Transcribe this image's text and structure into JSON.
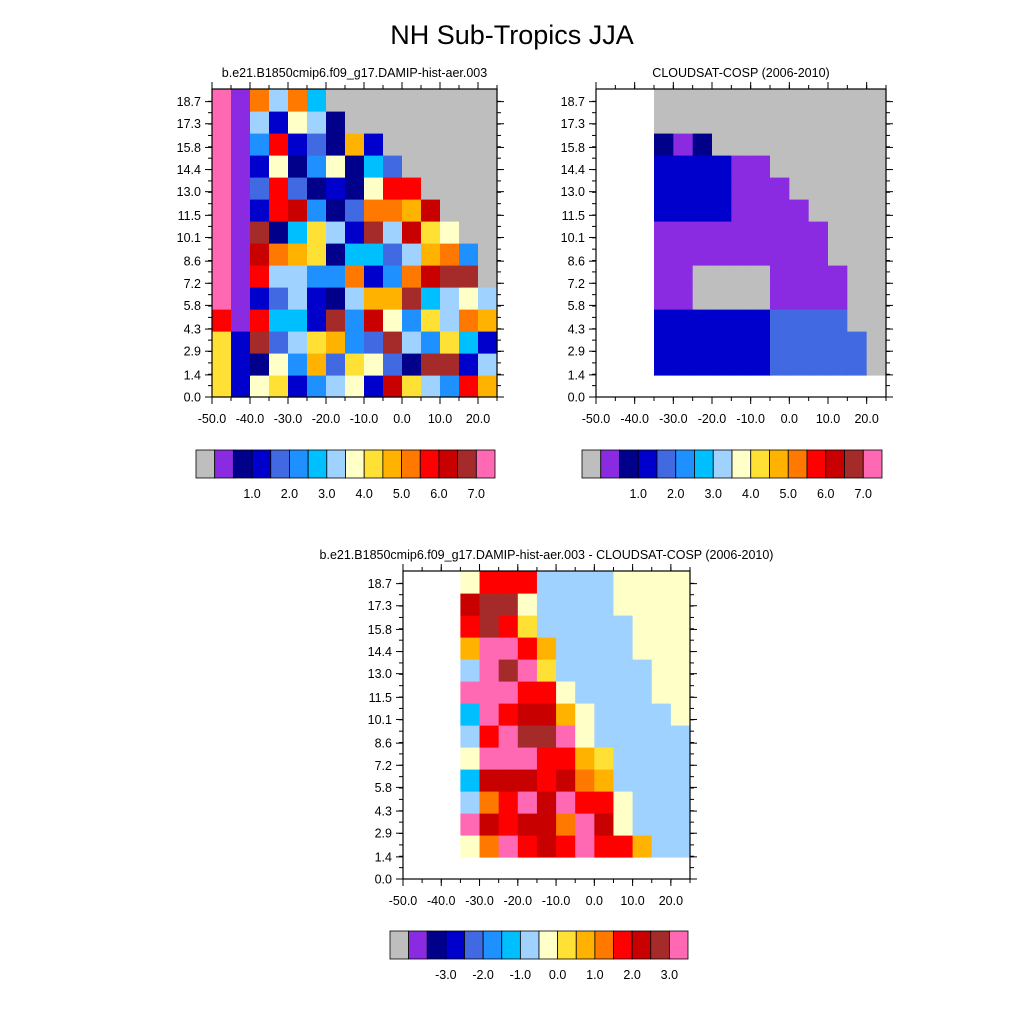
{
  "figure": {
    "title": "NH Sub-Tropics JJA"
  },
  "chart_data": [
    {
      "type": "heatmap",
      "title": "b.e21.B1850cmip6.f09_g17.DAMIP-hist-aer.003",
      "x_ticks": [
        "-50.0",
        "-40.0",
        "-30.0",
        "-20.0",
        "-10.0",
        "0.0",
        "10.0",
        "20.0"
      ],
      "y_ticks": [
        "0.0",
        "1.4",
        "2.9",
        "4.3",
        "5.8",
        "7.2",
        "8.6",
        "10.1",
        "11.5",
        "13.0",
        "14.4",
        "15.8",
        "17.3",
        "18.7"
      ],
      "xlim": [
        -50,
        25
      ],
      "ylim": [
        0,
        19.5
      ],
      "colorbar_labels": [
        "1.0",
        "2.0",
        "3.0",
        "4.0",
        "5.0",
        "6.0",
        "7.0"
      ],
      "colorbar_colors": [
        "#bebebe",
        "#8a2be2",
        "#00008b",
        "#0000cd",
        "#4169e1",
        "#1e90ff",
        "#00bfff",
        "#a0d2ff",
        "#ffffc8",
        "#ffe135",
        "#ffb300",
        "#ff7800",
        "#ff0000",
        "#c80000",
        "#a52a2a",
        "#ff69b4"
      ]
    },
    {
      "type": "heatmap",
      "title": "CLOUDSAT-COSP (2006-2010)",
      "x_ticks": [
        "-50.0",
        "-40.0",
        "-30.0",
        "-20.0",
        "-10.0",
        "0.0",
        "10.0",
        "20.0"
      ],
      "y_ticks": [
        "0.0",
        "1.4",
        "2.9",
        "4.3",
        "5.8",
        "7.2",
        "8.6",
        "10.1",
        "11.5",
        "13.0",
        "14.4",
        "15.8",
        "17.3",
        "18.7"
      ],
      "xlim": [
        -50,
        25
      ],
      "ylim": [
        0,
        19.5
      ],
      "colorbar_labels": [
        "1.0",
        "2.0",
        "3.0",
        "4.0",
        "5.0",
        "6.0",
        "7.0"
      ],
      "colorbar_colors": [
        "#bebebe",
        "#8a2be2",
        "#00008b",
        "#0000cd",
        "#4169e1",
        "#1e90ff",
        "#00bfff",
        "#a0d2ff",
        "#ffffc8",
        "#ffe135",
        "#ffb300",
        "#ff7800",
        "#ff0000",
        "#c80000",
        "#a52a2a",
        "#ff69b4"
      ]
    },
    {
      "type": "heatmap",
      "title": "b.e21.B1850cmip6.f09_g17.DAMIP-hist-aer.003 - CLOUDSAT-COSP (2006-2010)",
      "x_ticks": [
        "-50.0",
        "-40.0",
        "-30.0",
        "-20.0",
        "-10.0",
        "0.0",
        "10.0",
        "20.0"
      ],
      "y_ticks": [
        "0.0",
        "1.4",
        "2.9",
        "4.3",
        "5.8",
        "7.2",
        "8.6",
        "10.1",
        "11.5",
        "13.0",
        "14.4",
        "15.8",
        "17.3",
        "18.7"
      ],
      "xlim": [
        -50,
        25
      ],
      "ylim": [
        0,
        19.5
      ],
      "colorbar_labels": [
        "-3.0",
        "-2.0",
        "-1.0",
        "0.0",
        "1.0",
        "2.0",
        "3.0"
      ],
      "colorbar_colors": [
        "#bebebe",
        "#8a2be2",
        "#00008b",
        "#0000cd",
        "#4169e1",
        "#1e90ff",
        "#00bfff",
        "#a0d2ff",
        "#ffffc8",
        "#ffe135",
        "#ffb300",
        "#ff7800",
        "#ff0000",
        "#c80000",
        "#a52a2a",
        "#ff69b4"
      ]
    }
  ]
}
